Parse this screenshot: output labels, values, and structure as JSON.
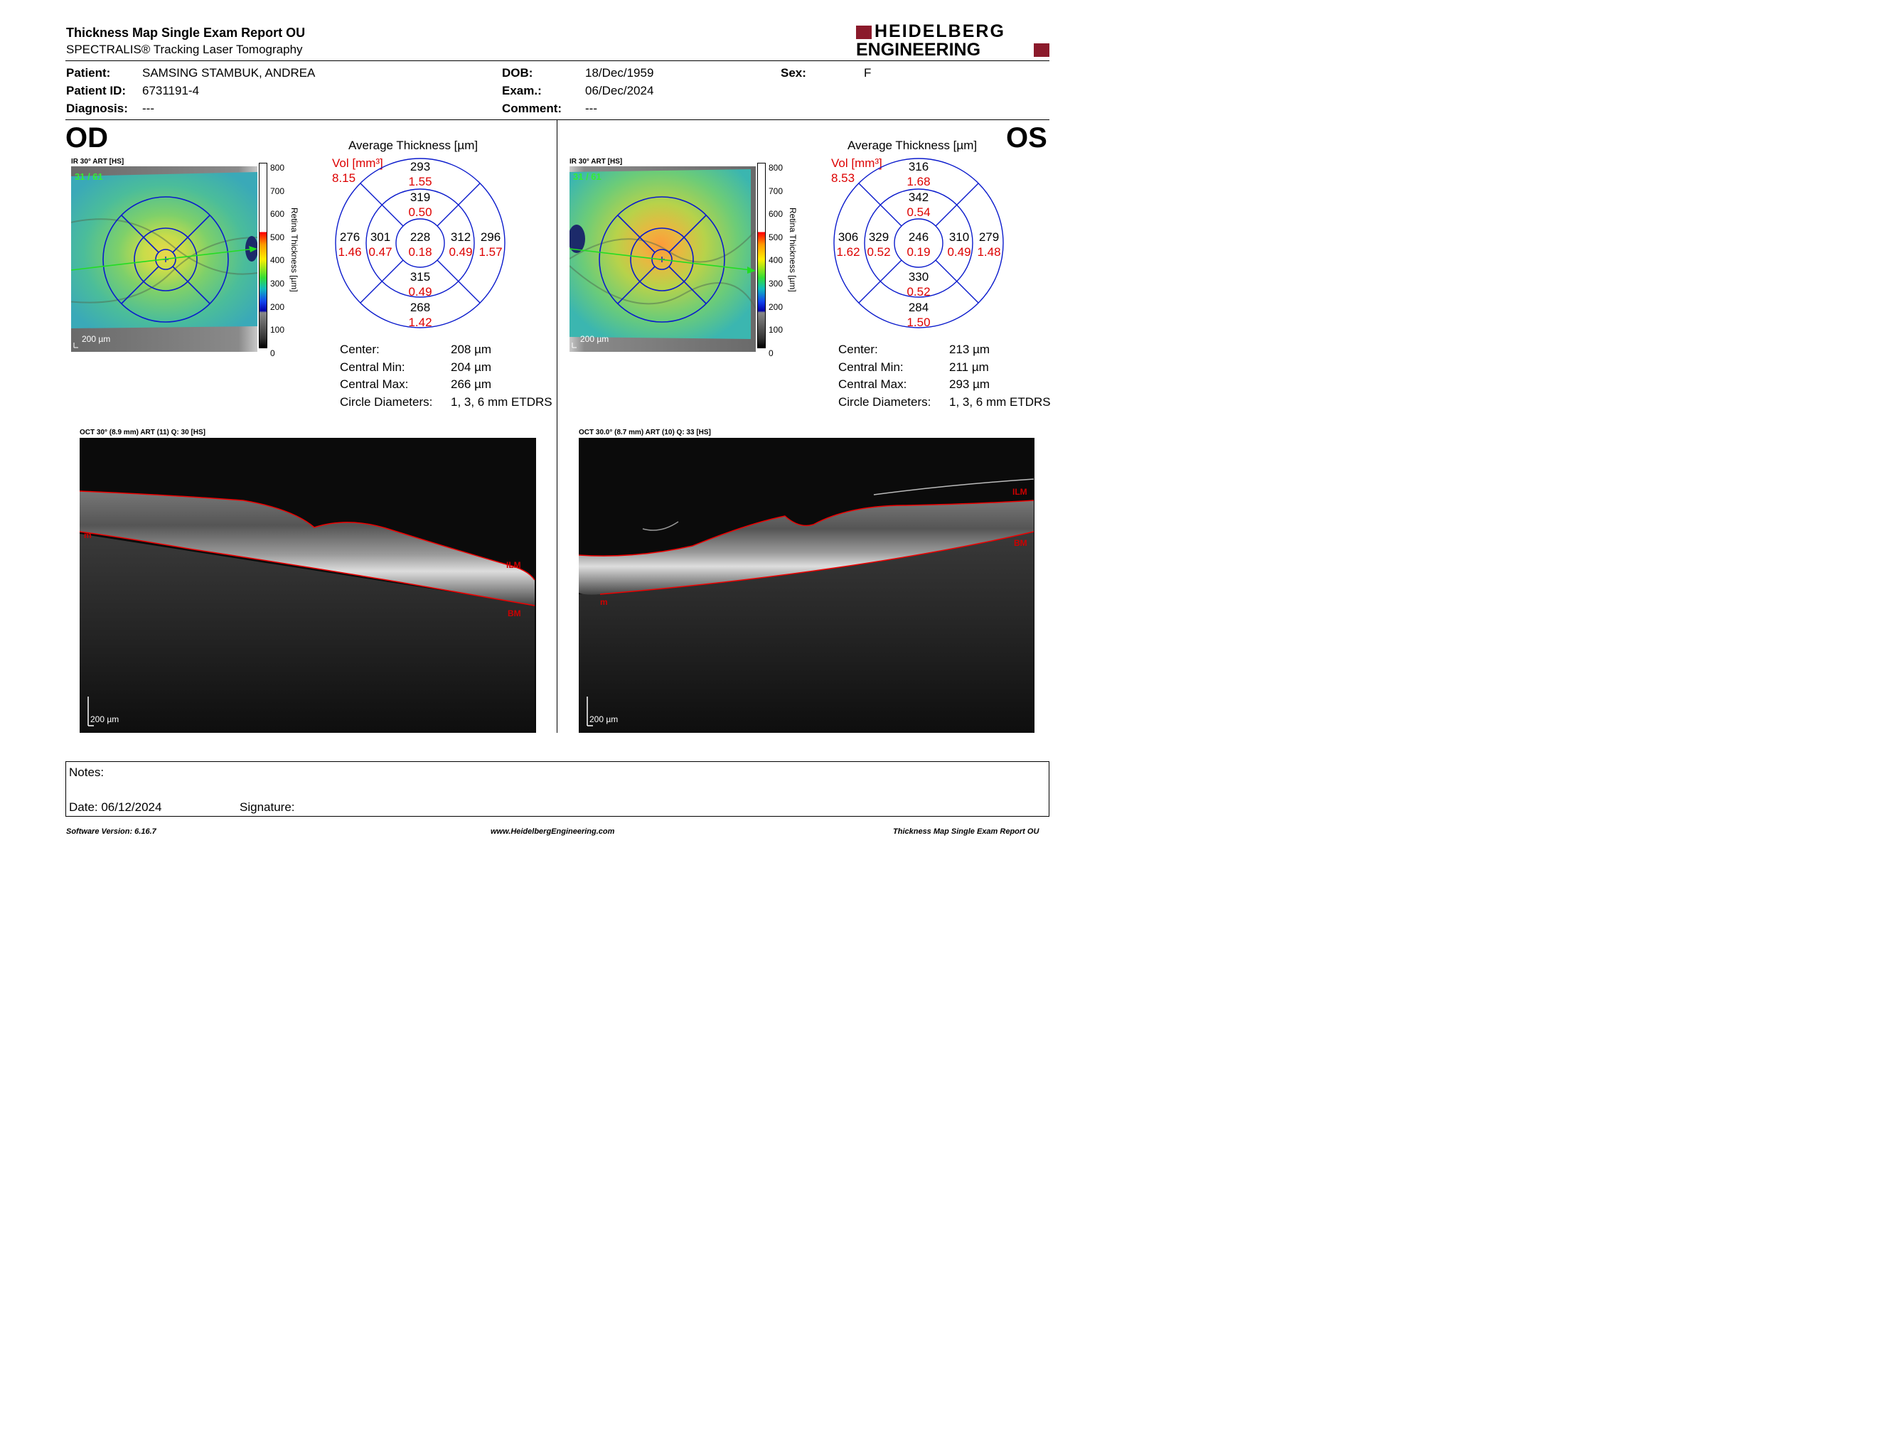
{
  "header": {
    "title": "Thickness Map Single Exam Report OU",
    "subtitle": "SPECTRALIS® Tracking Laser Tomography",
    "logo_line1": "HEIDELBERG",
    "logo_line2": "ENGINEERING",
    "brand_color": "#8b1a2b"
  },
  "patient": {
    "patient_label": "Patient:",
    "patient_value": "SAMSING STAMBUK, ANDREA",
    "id_label": "Patient ID:",
    "id_value": "6731191-4",
    "diag_label": "Diagnosis:",
    "diag_value": "---",
    "dob_label": "DOB:",
    "dob_value": "18/Dec/1959",
    "exam_label": "Exam.:",
    "exam_value": "06/Dec/2024",
    "comment_label": "Comment:",
    "comment_value": "---",
    "sex_label": "Sex:",
    "sex_value": "F"
  },
  "colorbar": {
    "ticks": [
      "800",
      "700",
      "600",
      "500",
      "400",
      "300",
      "200",
      "100",
      "0"
    ],
    "axis_label": "Retina Thickness [µm]"
  },
  "od": {
    "eye": "OD",
    "ir_label": "IR 30° ART [HS]",
    "frames": "31 / 61",
    "scale": "200 µm",
    "avg_title": "Average Thickness [µm]",
    "vol_label": "Vol [mm³]",
    "vol_total": "8.15",
    "sectors": {
      "outer_sup": [
        "293",
        "1.55"
      ],
      "inner_sup": [
        "319",
        "0.50"
      ],
      "outer_temp": [
        "276",
        "1.46"
      ],
      "inner_temp": [
        "301",
        "0.47"
      ],
      "center": [
        "228",
        "0.18"
      ],
      "inner_nasal": [
        "312",
        "0.49"
      ],
      "outer_nasal": [
        "296",
        "1.57"
      ],
      "inner_inf": [
        "315",
        "0.49"
      ],
      "outer_inf": [
        "268",
        "1.42"
      ]
    },
    "stats": [
      {
        "label": "Center:",
        "value": "208 µm"
      },
      {
        "label": "Central Min:",
        "value": "204 µm"
      },
      {
        "label": "Central Max:",
        "value": "266 µm"
      },
      {
        "label": "Circle Diameters:",
        "value": "1, 3, 6 mm ETDRS"
      }
    ],
    "oct_label": "OCT 30° (8.9 mm) ART (11) Q: 30 [HS]",
    "oct_scale": "200 µm",
    "layer_ilm": "ILM",
    "layer_bm": "BM",
    "layer_m": "m"
  },
  "os": {
    "eye": "OS",
    "ir_label": "IR 30° ART [HS]",
    "frames": "31 / 61",
    "scale": "200 µm",
    "avg_title": "Average Thickness [µm]",
    "vol_label": "Vol [mm³]",
    "vol_total": "8.53",
    "sectors": {
      "outer_sup": [
        "316",
        "1.68"
      ],
      "inner_sup": [
        "342",
        "0.54"
      ],
      "outer_temp": [
        "306",
        "1.62"
      ],
      "inner_temp": [
        "329",
        "0.52"
      ],
      "center": [
        "246",
        "0.19"
      ],
      "inner_nasal": [
        "310",
        "0.49"
      ],
      "outer_nasal": [
        "279",
        "1.48"
      ],
      "inner_inf": [
        "330",
        "0.52"
      ],
      "outer_inf": [
        "284",
        "1.50"
      ]
    },
    "stats": [
      {
        "label": "Center:",
        "value": "213 µm"
      },
      {
        "label": "Central Min:",
        "value": "211 µm"
      },
      {
        "label": "Central Max:",
        "value": "293 µm"
      },
      {
        "label": "Circle Diameters:",
        "value": "1, 3, 6 mm ETDRS"
      }
    ],
    "oct_label": "OCT 30.0° (8.7 mm) ART (10) Q: 33 [HS]",
    "oct_scale": "200 µm",
    "layer_ilm": "ILM",
    "layer_bm": "BM",
    "layer_m": "m"
  },
  "notes": {
    "notes_label": "Notes:",
    "date_label": "Date: 06/12/2024",
    "signature_label": "Signature:"
  },
  "footer": {
    "version": "Software Version: 6.16.7",
    "website": "www.HeidelbergEngineering.com",
    "report": "Thickness Map Single Exam Report OU"
  }
}
